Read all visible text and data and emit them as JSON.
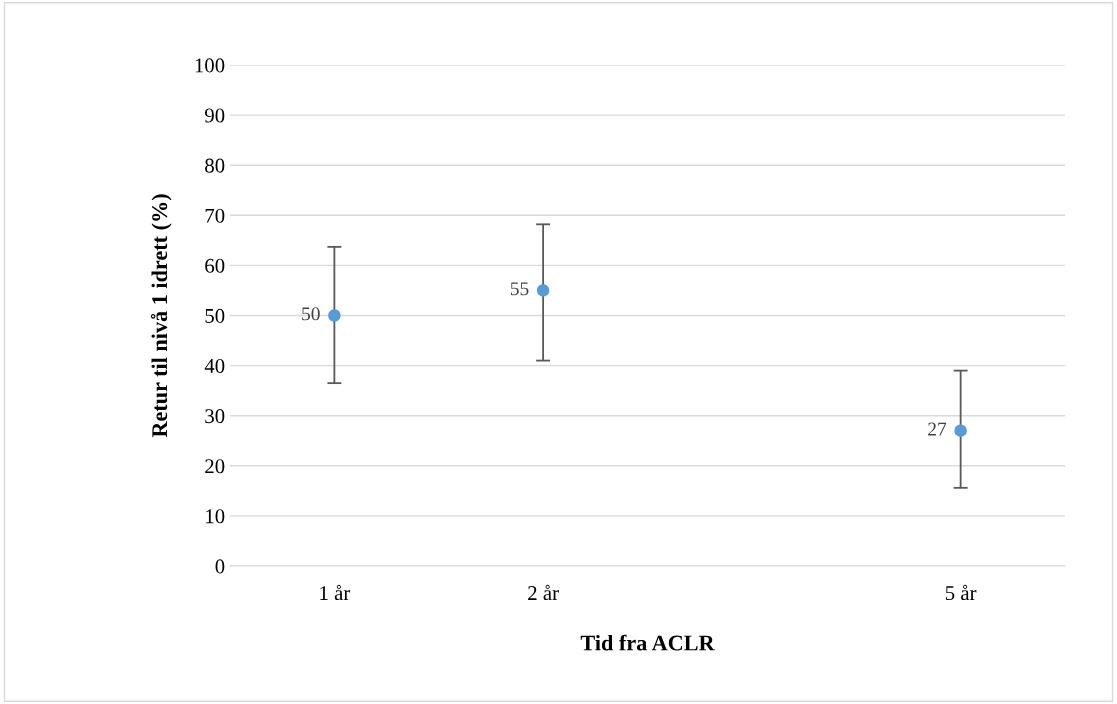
{
  "chart_data": {
    "type": "scatter",
    "xlabel": "Tid fra ACLR",
    "ylabel": "Retur til nivå 1 idrett (%)",
    "categories": [
      "1 år",
      "2 år",
      null,
      "5 år"
    ],
    "values": [
      50,
      55,
      null,
      27
    ],
    "color": "#5b9bd5",
    "errors": [
      [
        36.5,
        63.7
      ],
      [
        41,
        68.2
      ],
      null,
      [
        15.6,
        39
      ]
    ],
    "data_labels": true,
    "marker": "circle",
    "grid": "y",
    "ylim": [
      0,
      100
    ],
    "yticks": [
      0,
      10,
      20,
      30,
      40,
      50,
      60,
      70,
      80,
      90,
      100
    ]
  }
}
